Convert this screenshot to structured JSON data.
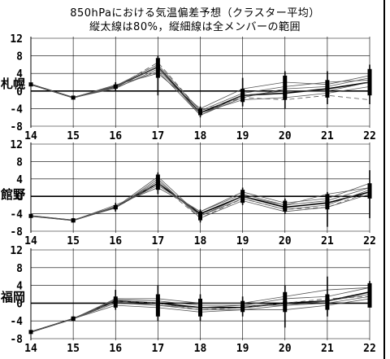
{
  "title_line1": "850hPaにおける気温偏差予想（クラスター平均）",
  "title_line2": "縦太線は80%，縦細線は全メンバーの範囲",
  "y_ticks": [
    "12",
    "8",
    "4",
    "0",
    "-4",
    "-8"
  ],
  "x_ticks": [
    "14",
    "15",
    "16",
    "17",
    "18",
    "19",
    "20",
    "21",
    "22"
  ],
  "colors": {
    "ink": "#000000",
    "member": "#555555",
    "background": "#ffffff"
  },
  "chart_data": [
    {
      "type": "line",
      "station": "札幌",
      "x": [
        14,
        15,
        16,
        17,
        18,
        19,
        20,
        21,
        22
      ],
      "ylim": [
        -8,
        12
      ],
      "grid": true,
      "series": [
        {
          "values": [
            1.5,
            -1.5,
            1.0,
            5.5,
            -5.0,
            -1.0,
            -0.5,
            0.5,
            2.0
          ]
        },
        {
          "values": [
            1.5,
            -1.5,
            0.8,
            4.5,
            -5.5,
            -1.5,
            0.5,
            1.0,
            3.0
          ]
        },
        {
          "values": [
            1.5,
            -1.5,
            1.2,
            6.0,
            -4.5,
            -0.5,
            1.0,
            2.0,
            2.5
          ]
        },
        {
          "values": [
            1.5,
            -1.5,
            0.6,
            5.0,
            -5.0,
            -2.0,
            -1.5,
            -0.5,
            1.0
          ]
        },
        {
          "values": [
            1.5,
            -1.5,
            1.4,
            4.0,
            -4.0,
            0.5,
            2.0,
            1.5,
            3.5
          ]
        },
        {
          "values": [
            1.5,
            -1.5,
            1.0,
            5.5,
            -5.5,
            -1.0,
            0.0,
            0.0,
            2.0
          ]
        },
        {
          "values": [
            1.5,
            -1.5,
            0.9,
            6.5,
            -4.5,
            -1.5,
            -2.0,
            -1.0,
            -2.0
          ]
        }
      ],
      "range80": [
        [
          1.5,
          1.5
        ],
        [
          -1.5,
          -1.5
        ],
        [
          0.5,
          1.5
        ],
        [
          3.0,
          7.5
        ],
        [
          -5.5,
          -4.0
        ],
        [
          -2.5,
          0.5
        ],
        [
          -2.0,
          3.5
        ],
        [
          -1.5,
          2.5
        ],
        [
          -1.0,
          5.0
        ]
      ],
      "range_all": [
        [
          1.5,
          1.5
        ],
        [
          -1.5,
          -1.5
        ],
        [
          0.0,
          2.0
        ],
        [
          -1.0,
          8.0
        ],
        [
          -6.0,
          -3.5
        ],
        [
          -3.5,
          3.0
        ],
        [
          -4.0,
          4.5
        ],
        [
          -3.0,
          4.5
        ],
        [
          -3.0,
          6.0
        ]
      ]
    },
    {
      "type": "line",
      "station": "館野",
      "x": [
        14,
        15,
        16,
        17,
        18,
        19,
        20,
        21,
        22
      ],
      "ylim": [
        -8,
        12
      ],
      "grid": true,
      "series": [
        {
          "values": [
            -4.5,
            -5.5,
            -2.5,
            3.0,
            -4.0,
            0.0,
            -2.5,
            -1.5,
            1.0
          ]
        },
        {
          "values": [
            -4.5,
            -5.5,
            -2.5,
            3.5,
            -4.5,
            -0.5,
            -3.0,
            -2.0,
            1.5
          ]
        },
        {
          "values": [
            -4.5,
            -5.5,
            -2.3,
            2.5,
            -3.5,
            0.5,
            -2.0,
            -1.0,
            2.0
          ]
        },
        {
          "values": [
            -4.5,
            -5.5,
            -2.7,
            4.0,
            -5.0,
            -1.0,
            -3.5,
            -2.5,
            0.5
          ]
        },
        {
          "values": [
            -4.5,
            -5.5,
            -2.0,
            2.0,
            -3.5,
            1.0,
            -1.5,
            -0.5,
            3.0
          ]
        },
        {
          "values": [
            -4.5,
            -5.5,
            -2.5,
            4.5,
            -4.5,
            0.0,
            -2.0,
            0.5,
            2.0
          ]
        },
        {
          "values": [
            -4.5,
            -5.5,
            -2.5,
            3.0,
            -5.0,
            -0.5,
            -3.0,
            -2.5,
            1.0
          ]
        }
      ],
      "range80": [
        [
          -4.5,
          -4.5
        ],
        [
          -6.0,
          -5.5
        ],
        [
          -3.0,
          -2.0
        ],
        [
          1.5,
          5.0
        ],
        [
          -5.5,
          -3.5
        ],
        [
          -1.5,
          1.5
        ],
        [
          -3.5,
          -1.0
        ],
        [
          -3.0,
          0.5
        ],
        [
          -0.5,
          3.0
        ]
      ],
      "range_all": [
        [
          -4.5,
          -4.5
        ],
        [
          -6.0,
          -5.0
        ],
        [
          -3.5,
          -1.5
        ],
        [
          0.5,
          5.5
        ],
        [
          -6.0,
          -3.0
        ],
        [
          -2.0,
          2.0
        ],
        [
          -4.0,
          -0.5
        ],
        [
          -7.0,
          1.0
        ],
        [
          -5.0,
          6.0
        ]
      ]
    },
    {
      "type": "line",
      "station": "福岡",
      "x": [
        14,
        15,
        16,
        17,
        18,
        19,
        20,
        21,
        22
      ],
      "ylim": [
        -8,
        12
      ],
      "grid": true,
      "series": [
        {
          "values": [
            -6.5,
            -3.5,
            0.5,
            0.0,
            -1.0,
            -1.0,
            0.0,
            0.5,
            2.5
          ]
        },
        {
          "values": [
            -6.5,
            -3.5,
            0.0,
            -0.5,
            -1.5,
            -1.5,
            -0.5,
            0.0,
            1.5
          ]
        },
        {
          "values": [
            -6.5,
            -3.5,
            0.8,
            0.5,
            -0.5,
            -0.5,
            1.0,
            1.5,
            3.5
          ]
        },
        {
          "values": [
            -6.5,
            -3.5,
            -0.5,
            -1.0,
            -2.0,
            -1.5,
            -1.5,
            -0.5,
            1.0
          ]
        },
        {
          "values": [
            -6.5,
            -3.5,
            1.0,
            1.0,
            0.0,
            0.0,
            1.5,
            3.0,
            3.5
          ]
        },
        {
          "values": [
            -6.5,
            -3.5,
            0.3,
            -0.5,
            -1.0,
            -0.5,
            -0.5,
            0.5,
            2.0
          ]
        },
        {
          "values": [
            -6.5,
            -3.5,
            0.5,
            0.0,
            -1.5,
            -1.0,
            0.0,
            1.0,
            1.5
          ]
        }
      ],
      "range80": [
        [
          -6.5,
          -6.5
        ],
        [
          -4.0,
          -3.0
        ],
        [
          -1.0,
          1.5
        ],
        [
          -3.0,
          2.0
        ],
        [
          -3.0,
          1.0
        ],
        [
          -2.0,
          0.5
        ],
        [
          -2.0,
          2.5
        ],
        [
          -1.5,
          2.0
        ],
        [
          -1.0,
          4.5
        ]
      ],
      "range_all": [
        [
          -6.5,
          -6.5
        ],
        [
          -4.0,
          -3.0
        ],
        [
          -1.5,
          3.0
        ],
        [
          -4.0,
          4.0
        ],
        [
          -4.0,
          2.0
        ],
        [
          -3.0,
          1.5
        ],
        [
          -5.5,
          4.0
        ],
        [
          -3.0,
          6.0
        ],
        [
          -1.0,
          5.0
        ]
      ]
    }
  ]
}
